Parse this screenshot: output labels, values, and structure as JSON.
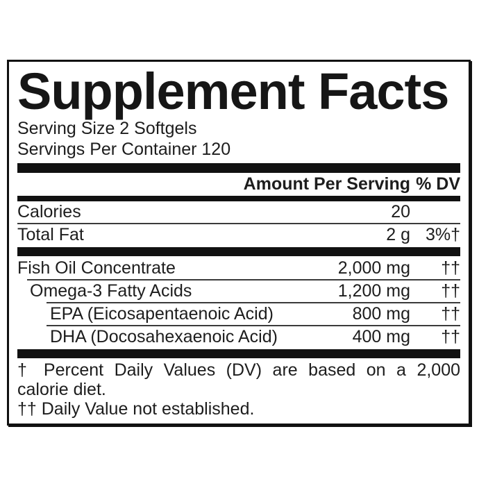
{
  "panel": {
    "title": "Supplement Facts",
    "serving": {
      "size": "Serving Size 2 Softgels",
      "per_container": "Servings Per Container 120"
    },
    "columns": {
      "amount_header": "Amount Per Serving",
      "dv_header": "% DV"
    },
    "rows": [
      {
        "name": "Calories",
        "amount": "20",
        "dv": ""
      },
      {
        "name": "Total Fat",
        "amount": "2 g",
        "dv": "3%†"
      },
      {
        "name": "Fish Oil Concentrate",
        "amount": "2,000 mg",
        "dv": "††"
      },
      {
        "name": "Omega-3 Fatty Acids",
        "amount": "1,200 mg",
        "dv": "††"
      },
      {
        "name": "EPA (Eicosapentaenoic Acid)",
        "amount": "800 mg",
        "dv": "††"
      },
      {
        "name": "DHA (Docosahexaenoic Acid)",
        "amount": "400 mg",
        "dv": "††"
      }
    ],
    "footnotes": {
      "dv_line1": "† Percent Daily Values (DV) are based on a 2,000",
      "dv_line2": "calorie diet.",
      "not_established": "†† Daily Value not established."
    },
    "colors": {
      "text": "#1d1d1d",
      "rule": "#111111",
      "background": "#ffffff"
    }
  }
}
